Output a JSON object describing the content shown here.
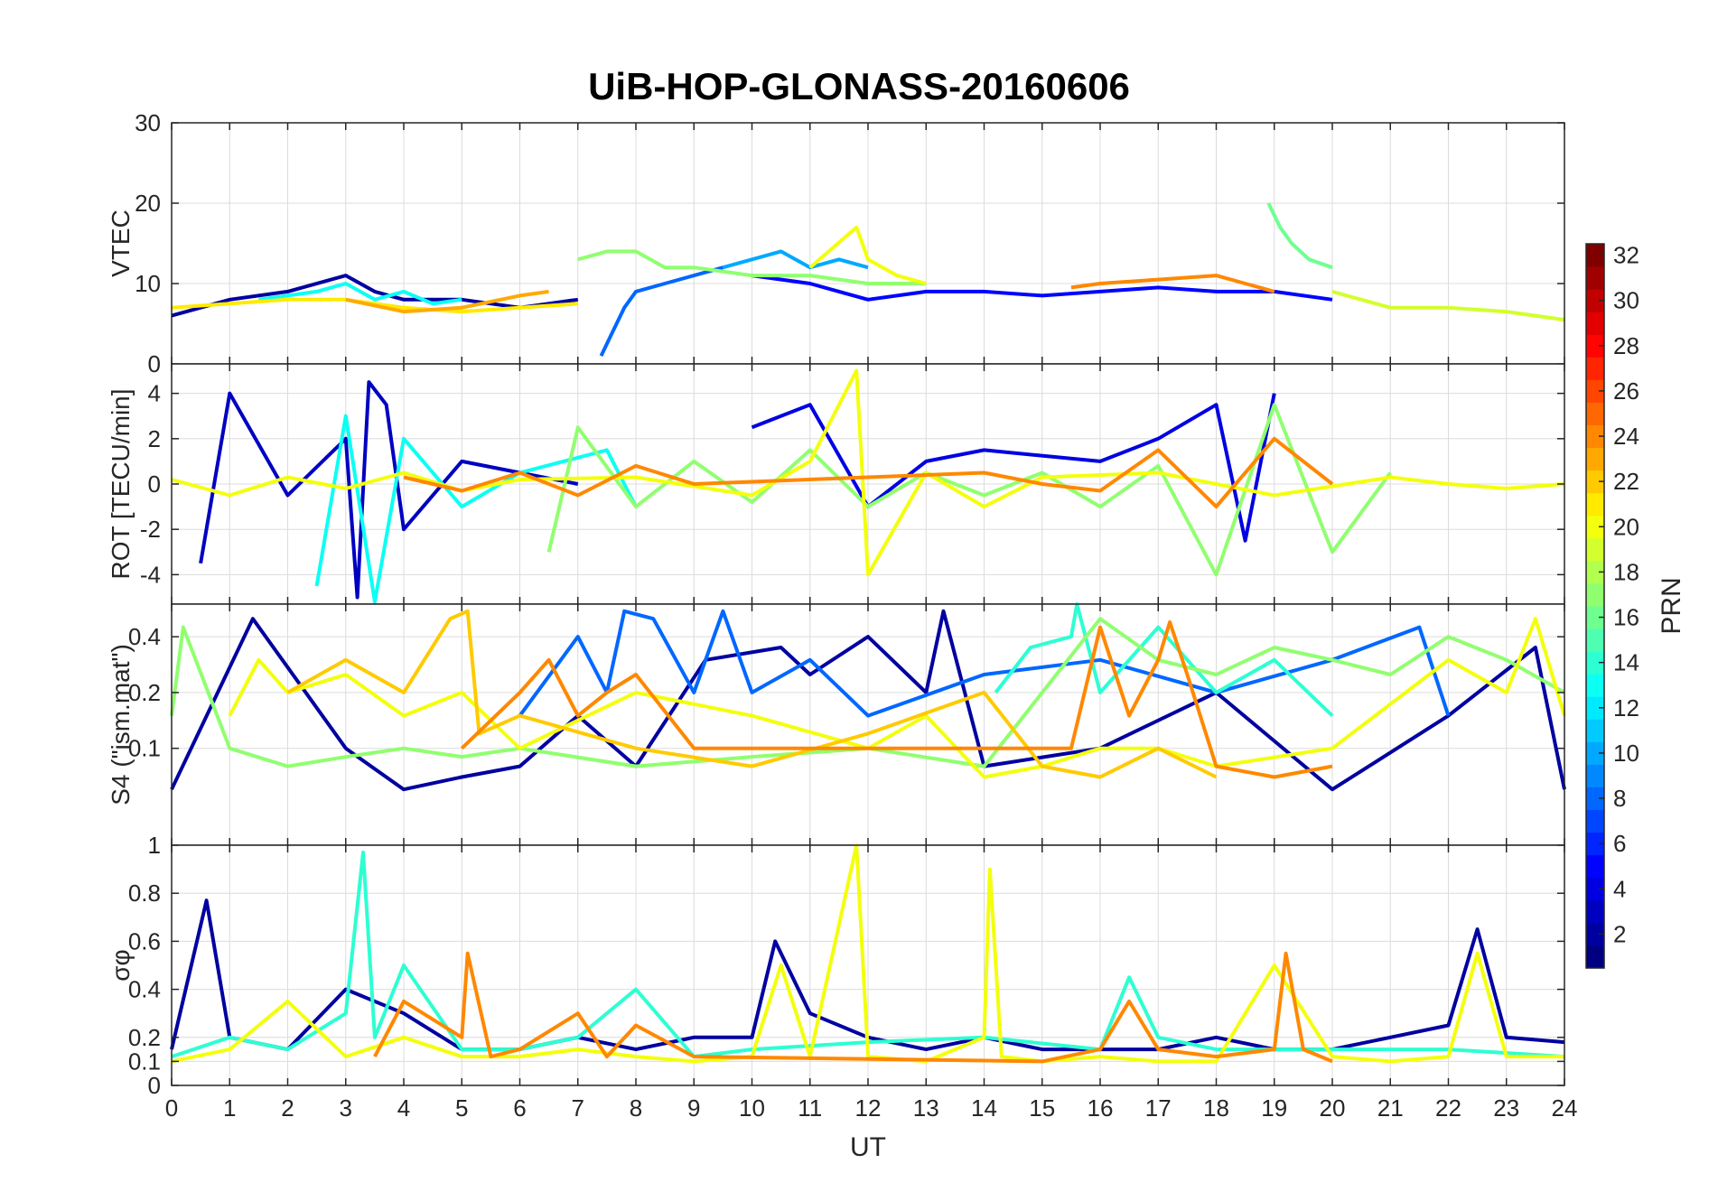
{
  "title": "UiB-HOP-GLONASS-20160606",
  "colors": {
    "axis": "#262626",
    "grid": "#dcdcdc",
    "background": "#ffffff"
  },
  "chart_data": [
    {
      "type": "line",
      "panel": "VTEC",
      "ylabel": "VTEC",
      "xlim": [
        0,
        24
      ],
      "ylim": [
        0,
        30
      ],
      "yticks": [
        0,
        10,
        20,
        30
      ],
      "ytick_labels": [
        "0",
        "10",
        "20",
        "30"
      ],
      "grid": true,
      "series": [
        {
          "prn": 2,
          "x": [
            0,
            1,
            2,
            3,
            3.5,
            4,
            5,
            6,
            7
          ],
          "y": [
            6,
            8,
            9,
            11,
            9,
            8,
            8,
            7,
            8
          ]
        },
        {
          "prn": 5,
          "x": [
            10,
            11,
            11.5,
            12,
            13,
            14,
            15,
            16,
            17,
            18,
            19,
            20
          ],
          "y": [
            11,
            10,
            9,
            8,
            9,
            9,
            8.5,
            9,
            9.5,
            9,
            9,
            8
          ]
        },
        {
          "prn": 8,
          "x": [
            7.4,
            7.6,
            7.8,
            8,
            8.5,
            9,
            9.5
          ],
          "y": [
            1,
            4,
            7,
            9,
            10,
            11,
            12
          ]
        },
        {
          "prn": 10,
          "x": [
            9.5,
            10,
            10.5,
            11,
            11.5,
            12
          ],
          "y": [
            12,
            13,
            14,
            12,
            13,
            12
          ]
        },
        {
          "prn": 13,
          "x": [
            1.5,
            2.5,
            3,
            3.5,
            4,
            4.5,
            5
          ],
          "y": [
            8,
            9,
            10,
            8,
            9,
            7.5,
            8
          ]
        },
        {
          "prn": 16,
          "x": [
            18.9,
            19.1,
            19.3,
            19.6,
            20
          ],
          "y": [
            20,
            17,
            15,
            13,
            12
          ]
        },
        {
          "prn": 17,
          "x": [
            7,
            7.5,
            8,
            8.5,
            9,
            10,
            11,
            12,
            13
          ],
          "y": [
            13,
            14,
            14,
            12,
            12,
            11,
            11,
            10,
            10
          ]
        },
        {
          "prn": 19,
          "x": [
            20,
            20.5,
            21,
            22,
            23,
            24
          ],
          "y": [
            9,
            8,
            7,
            7,
            6.5,
            5.5
          ]
        },
        {
          "prn": 20,
          "x": [
            11,
            11.8,
            12,
            12.5,
            13
          ],
          "y": [
            12,
            17,
            13,
            11,
            10
          ]
        },
        {
          "prn": 21,
          "x": [
            0,
            1,
            2,
            3,
            4,
            5,
            6,
            7
          ],
          "y": [
            7,
            7.5,
            8,
            8,
            7,
            6.5,
            7,
            7.5
          ]
        },
        {
          "prn": 23,
          "x": [
            3,
            4,
            5,
            6,
            6.5
          ],
          "y": [
            8,
            6.5,
            7,
            8.5,
            9
          ]
        },
        {
          "prn": 24,
          "x": [
            15.5,
            16,
            17,
            18,
            18.5,
            19
          ],
          "y": [
            9.5,
            10,
            10.5,
            11,
            10,
            9
          ]
        }
      ]
    },
    {
      "type": "line",
      "panel": "ROT",
      "ylabel": "ROT [TECU/min]",
      "xlim": [
        0,
        24
      ],
      "ylim": [
        -5.3,
        5.3
      ],
      "yticks": [
        -4,
        -2,
        0,
        2,
        4
      ],
      "ytick_labels": [
        "-4",
        "-2",
        "0",
        "2",
        "4"
      ],
      "grid": true,
      "series": [
        {
          "prn": 3,
          "x": [
            0.5,
            1,
            2,
            3,
            3.2,
            3.4,
            3.7,
            4,
            5,
            6,
            7
          ],
          "y": [
            -3.5,
            4,
            -0.5,
            2,
            -5,
            4.5,
            3.5,
            -2,
            1,
            0.5,
            0
          ]
        },
        {
          "prn": 4,
          "x": [
            10,
            11,
            12,
            13,
            14,
            16,
            17,
            18,
            18.5,
            19
          ],
          "y": [
            2.5,
            3.5,
            -1,
            1,
            1.5,
            1,
            2,
            3.5,
            -2.5,
            4
          ]
        },
        {
          "prn": 13,
          "x": [
            2.5,
            3,
            3.5,
            4,
            5,
            6,
            7.5,
            8
          ],
          "y": [
            -4.5,
            3,
            -5.2,
            2,
            -1,
            0.5,
            1.5,
            -1
          ]
        },
        {
          "prn": 17,
          "x": [
            6.5,
            7,
            8,
            9,
            10,
            11,
            12,
            13,
            14,
            15,
            16,
            17,
            18,
            19,
            20,
            21
          ],
          "y": [
            -3,
            2.5,
            -1,
            1,
            -0.8,
            1.5,
            -1,
            0.5,
            -0.5,
            0.5,
            -1,
            0.8,
            -4,
            3.5,
            -3,
            0.5
          ]
        },
        {
          "prn": 20,
          "x": [
            0,
            1,
            2,
            3,
            4,
            5,
            6,
            8,
            10,
            11,
            11.8,
            12,
            13,
            14,
            15,
            17,
            19,
            21,
            22,
            23,
            24
          ],
          "y": [
            0.2,
            -0.5,
            0.3,
            -0.2,
            0.5,
            -0.3,
            0.2,
            0.3,
            -0.5,
            1,
            5,
            -4,
            0.5,
            -1,
            0.3,
            0.5,
            -0.5,
            0.3,
            0,
            -0.2,
            0
          ]
        },
        {
          "prn": 24,
          "x": [
            4,
            5,
            6,
            7,
            8,
            9,
            14,
            15,
            16,
            17,
            18,
            19,
            20
          ],
          "y": [
            0.3,
            -0.3,
            0.5,
            -0.5,
            0.8,
            0,
            0.5,
            0,
            -0.3,
            1.5,
            -1,
            2,
            0
          ]
        }
      ]
    },
    {
      "type": "line",
      "panel": "S4",
      "ylabel": "S4 (\"ism.mat\")",
      "xlim": [
        0,
        24
      ],
      "ylim": [
        0.03,
        0.6
      ],
      "yscale": "log",
      "yticks": [
        0.1,
        0.2,
        0.4
      ],
      "ytick_labels": [
        "0.1",
        "0.2",
        "0.4"
      ],
      "grid": true,
      "series": [
        {
          "prn": 2,
          "x": [
            0,
            1.4,
            3,
            4,
            5,
            6,
            7,
            8,
            9.2,
            10.5,
            11,
            12,
            13,
            13.3,
            14,
            16,
            18,
            20,
            22,
            23.5,
            24
          ],
          "y": [
            0.06,
            0.5,
            0.1,
            0.06,
            0.07,
            0.08,
            0.15,
            0.08,
            0.3,
            0.35,
            0.25,
            0.4,
            0.2,
            0.55,
            0.08,
            0.1,
            0.2,
            0.06,
            0.15,
            0.35,
            0.06
          ]
        },
        {
          "prn": 8,
          "x": [
            6,
            7,
            7.5,
            7.8,
            8.3,
            9,
            9.5,
            10,
            11,
            12,
            14,
            16,
            18,
            20,
            21.5,
            22
          ],
          "y": [
            0.15,
            0.4,
            0.2,
            0.55,
            0.5,
            0.2,
            0.55,
            0.2,
            0.3,
            0.15,
            0.25,
            0.3,
            0.2,
            0.3,
            0.45,
            0.15
          ]
        },
        {
          "prn": 14,
          "x": [
            14.2,
            14.8,
            15.5,
            15.6,
            16,
            17,
            18,
            19,
            20
          ],
          "y": [
            0.2,
            0.35,
            0.4,
            0.6,
            0.2,
            0.45,
            0.2,
            0.3,
            0.15
          ]
        },
        {
          "prn": 17,
          "x": [
            0,
            0.2,
            1,
            2,
            3,
            4,
            5,
            6,
            8,
            10,
            12,
            14,
            15,
            16,
            17,
            18,
            19,
            20,
            21,
            22,
            23,
            24
          ],
          "y": [
            0.15,
            0.45,
            0.1,
            0.08,
            0.09,
            0.1,
            0.09,
            0.1,
            0.08,
            0.09,
            0.1,
            0.08,
            0.2,
            0.5,
            0.3,
            0.25,
            0.35,
            0.3,
            0.25,
            0.4,
            0.3,
            0.2
          ]
        },
        {
          "prn": 20,
          "x": [
            1,
            1.5,
            2,
            3,
            4,
            5,
            6,
            8,
            10,
            12,
            13,
            14,
            15,
            16,
            17,
            18,
            20,
            22,
            23,
            23.5,
            24
          ],
          "y": [
            0.15,
            0.3,
            0.2,
            0.25,
            0.15,
            0.2,
            0.1,
            0.2,
            0.15,
            0.1,
            0.15,
            0.07,
            0.08,
            0.1,
            0.1,
            0.08,
            0.1,
            0.3,
            0.2,
            0.5,
            0.15
          ]
        },
        {
          "prn": 22,
          "x": [
            2,
            3,
            4,
            4.8,
            5.1,
            5.3,
            6,
            8,
            10,
            12,
            14,
            15,
            16,
            17,
            18
          ],
          "y": [
            0.2,
            0.3,
            0.2,
            0.5,
            0.55,
            0.12,
            0.15,
            0.1,
            0.08,
            0.12,
            0.2,
            0.08,
            0.07,
            0.1,
            0.07
          ]
        },
        {
          "prn": 24,
          "x": [
            5,
            6,
            6.5,
            7,
            7.5,
            8,
            9,
            15.5,
            16,
            16.5,
            17,
            17.2,
            17.5,
            18,
            19,
            20
          ],
          "y": [
            0.1,
            0.2,
            0.3,
            0.15,
            0.2,
            0.25,
            0.1,
            0.1,
            0.45,
            0.15,
            0.3,
            0.48,
            0.25,
            0.08,
            0.07,
            0.08
          ]
        }
      ]
    },
    {
      "type": "line",
      "panel": "sigma_phi",
      "ylabel": "σφ",
      "xlim": [
        0,
        24
      ],
      "ylim": [
        0,
        1
      ],
      "yticks": [
        0,
        0.1,
        0.2,
        0.4,
        0.6,
        0.8,
        1
      ],
      "ytick_labels": [
        "0",
        "0.1",
        "0.2",
        "0.4",
        "0.6",
        "0.8",
        "1"
      ],
      "grid": true,
      "series": [
        {
          "prn": 2,
          "x": [
            0,
            0.6,
            1,
            2,
            3,
            4,
            5,
            6,
            7,
            8,
            9,
            10,
            10.4,
            11,
            12,
            13,
            14,
            15,
            16,
            17,
            18,
            19,
            20,
            21,
            22,
            22.5,
            23,
            24
          ],
          "y": [
            0.15,
            0.77,
            0.2,
            0.15,
            0.4,
            0.3,
            0.15,
            0.15,
            0.2,
            0.15,
            0.2,
            0.2,
            0.6,
            0.3,
            0.2,
            0.15,
            0.2,
            0.15,
            0.15,
            0.15,
            0.2,
            0.15,
            0.15,
            0.2,
            0.25,
            0.65,
            0.2,
            0.18
          ]
        },
        {
          "prn": 14,
          "x": [
            0,
            1,
            2,
            3,
            3.3,
            3.5,
            4,
            5,
            6,
            7,
            8,
            9,
            10,
            12,
            14,
            16,
            16.5,
            17,
            18,
            20,
            22,
            24
          ],
          "y": [
            0.12,
            0.2,
            0.15,
            0.3,
            0.97,
            0.2,
            0.5,
            0.15,
            0.15,
            0.2,
            0.4,
            0.12,
            0.15,
            0.18,
            0.2,
            0.15,
            0.45,
            0.2,
            0.15,
            0.15,
            0.15,
            0.12
          ]
        },
        {
          "prn": 20,
          "x": [
            0,
            1,
            2,
            3,
            4,
            5,
            6,
            7,
            8,
            9,
            10,
            10.5,
            11,
            11.8,
            12,
            13,
            14,
            14.1,
            14.3,
            15,
            16,
            17,
            18,
            19,
            20,
            21,
            22,
            22.5,
            23,
            24
          ],
          "y": [
            0.1,
            0.15,
            0.35,
            0.12,
            0.2,
            0.12,
            0.12,
            0.15,
            0.12,
            0.1,
            0.12,
            0.5,
            0.12,
            1.0,
            0.12,
            0.1,
            0.2,
            0.9,
            0.12,
            0.1,
            0.12,
            0.1,
            0.1,
            0.5,
            0.12,
            0.1,
            0.12,
            0.55,
            0.12,
            0.12
          ]
        },
        {
          "prn": 24,
          "x": [
            3.5,
            4,
            5,
            5.1,
            5.5,
            6,
            7,
            7.5,
            8,
            9,
            15,
            16,
            16.5,
            17,
            18,
            19,
            19.2,
            19.5,
            20
          ],
          "y": [
            0.12,
            0.35,
            0.2,
            0.55,
            0.12,
            0.15,
            0.3,
            0.12,
            0.25,
            0.12,
            0.1,
            0.15,
            0.35,
            0.15,
            0.12,
            0.15,
            0.55,
            0.15,
            0.1
          ]
        }
      ]
    }
  ],
  "xaxis": {
    "label": "UT",
    "ticks": [
      0,
      1,
      2,
      3,
      4,
      5,
      6,
      7,
      8,
      9,
      10,
      11,
      12,
      13,
      14,
      15,
      16,
      17,
      18,
      19,
      20,
      21,
      22,
      23,
      24
    ],
    "tick_labels": [
      "0",
      "1",
      "2",
      "3",
      "4",
      "5",
      "6",
      "7",
      "8",
      "9",
      "10",
      "11",
      "12",
      "13",
      "14",
      "15",
      "16",
      "17",
      "18",
      "19",
      "20",
      "21",
      "22",
      "23",
      "24"
    ]
  },
  "colorbar": {
    "label": "PRN",
    "range": [
      1,
      32
    ],
    "ticks": [
      2,
      4,
      6,
      8,
      10,
      12,
      14,
      16,
      18,
      20,
      22,
      24,
      26,
      28,
      30,
      32
    ],
    "tick_labels": [
      "2",
      "4",
      "6",
      "8",
      "10",
      "12",
      "14",
      "16",
      "18",
      "20",
      "22",
      "24",
      "26",
      "28",
      "30",
      "32"
    ],
    "colormap": "jet"
  }
}
